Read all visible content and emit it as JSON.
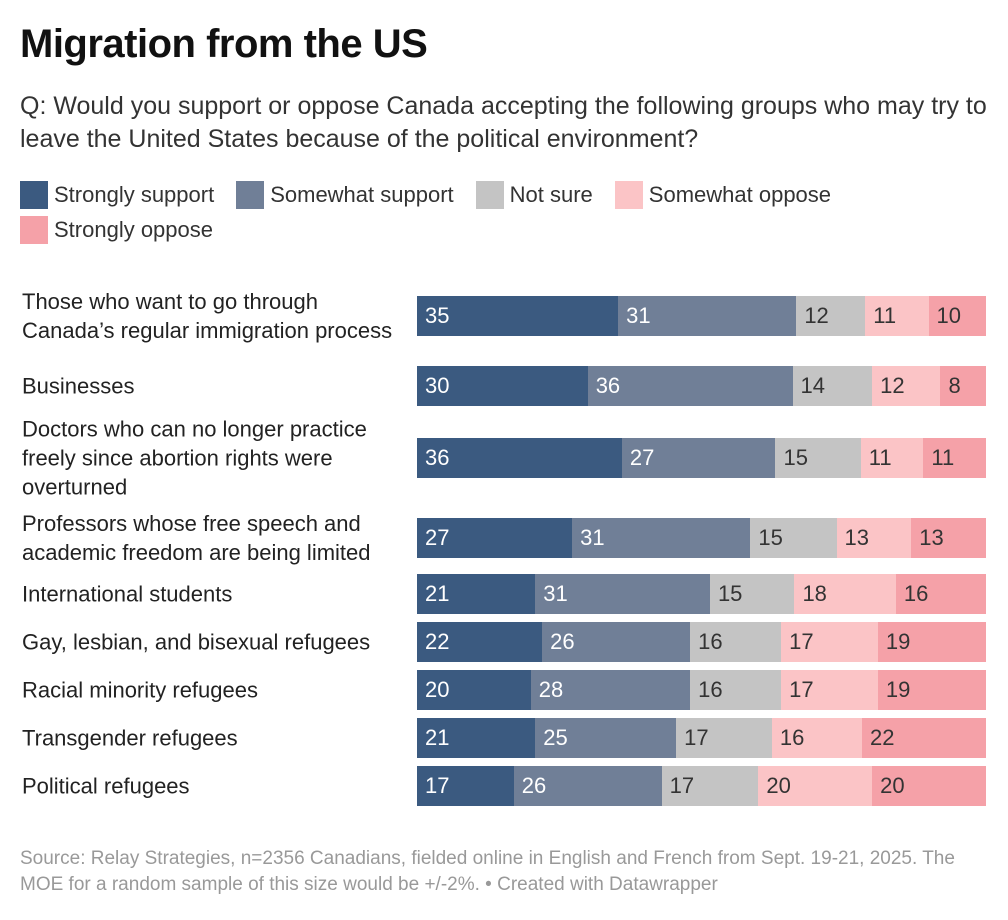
{
  "title": "Migration from the US",
  "subtitle": "Q: Would you support or oppose Canada accepting the following groups who may try to leave the United States because of the political environment?",
  "footer": "Source: Relay Strategies, n=2356 Canadians, fielded online in English and French from Sept. 19-21, 2025. The MOE for a random sample of this size would be +/-2%. • Created with Datawrapper",
  "chart_data": {
    "type": "bar",
    "stacked": true,
    "orientation": "horizontal",
    "title": "Migration from the US",
    "legend_position": "top",
    "series": [
      {
        "name": "Strongly support",
        "color": "#3b5a80",
        "text": "#ffffff",
        "values": [
          35,
          30,
          36,
          27,
          21,
          22,
          20,
          21,
          17
        ]
      },
      {
        "name": "Somewhat support",
        "color": "#707f97",
        "text": "#ffffff",
        "values": [
          31,
          36,
          27,
          31,
          31,
          26,
          28,
          25,
          26
        ]
      },
      {
        "name": "Not sure",
        "color": "#c4c4c4",
        "text": "#333333",
        "values": [
          12,
          14,
          15,
          15,
          15,
          16,
          16,
          17,
          17
        ]
      },
      {
        "name": "Somewhat oppose",
        "color": "#fbc4c6",
        "text": "#333333",
        "values": [
          11,
          12,
          11,
          13,
          18,
          17,
          17,
          16,
          20
        ]
      },
      {
        "name": "Strongly oppose",
        "color": "#f5a1a8",
        "text": "#333333",
        "values": [
          10,
          8,
          11,
          13,
          16,
          19,
          19,
          22,
          20
        ]
      }
    ],
    "categories": [
      "Those who want to go through Canada’s regular immigration process",
      "Businesses",
      "Doctors who can no longer practice freely since abortion rights were overturned",
      "Professors whose free speech and academic freedom are being limited",
      "International students",
      "Gay, lesbian, and bisexual refugees",
      "Racial minority refugees",
      "Transgender refugees",
      "Political refugees"
    ]
  }
}
